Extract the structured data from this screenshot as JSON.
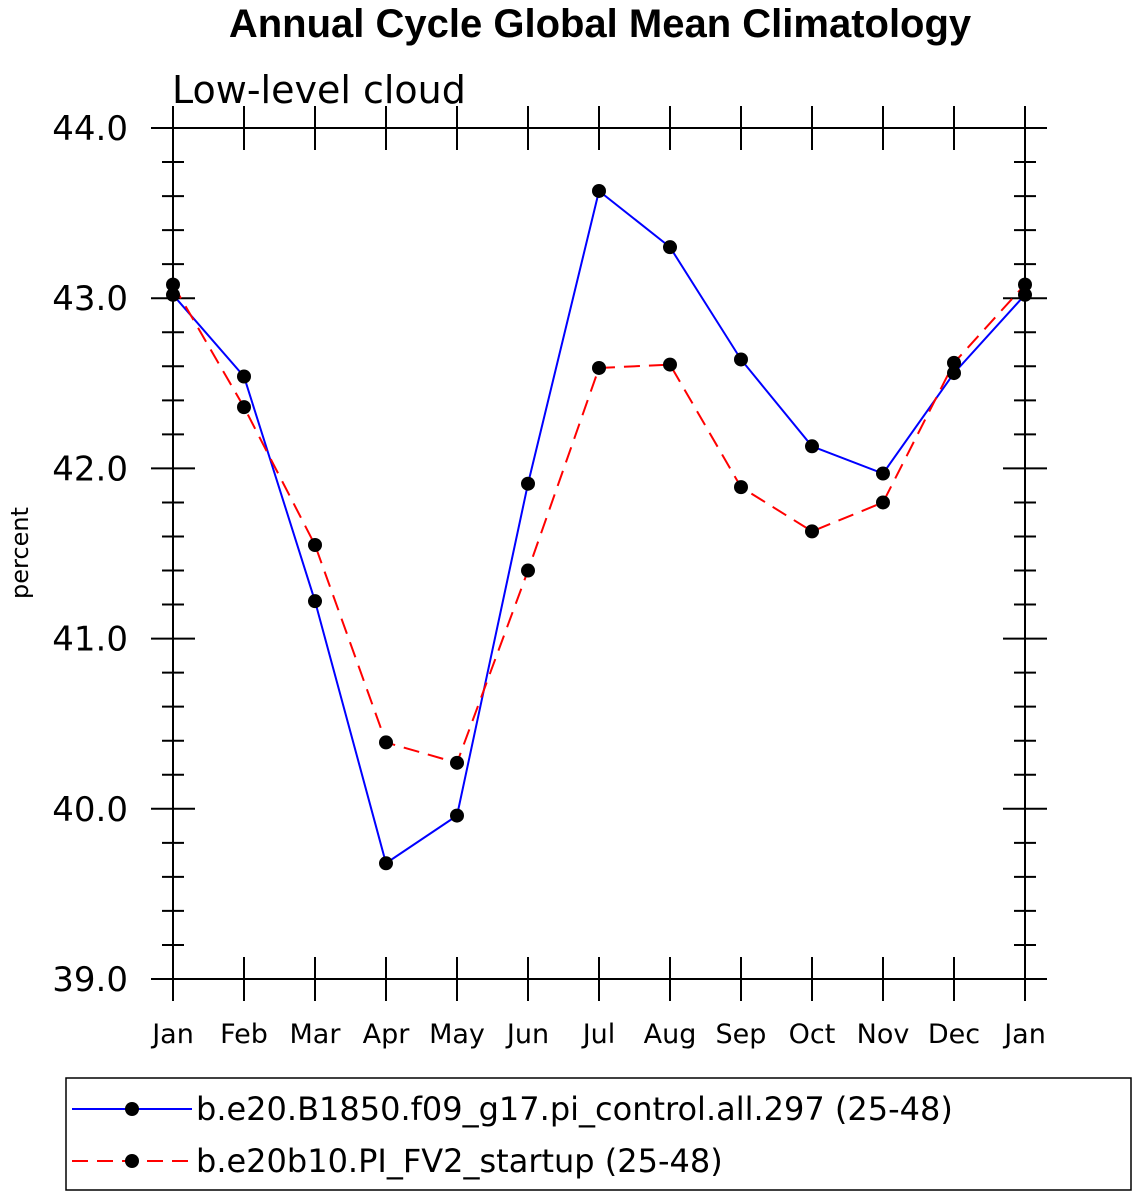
{
  "chart_data": {
    "type": "line",
    "title": "Annual Cycle Global Mean Climatology",
    "subtitle": "Low-level cloud",
    "xlabel": "",
    "ylabel": "percent",
    "ylim": [
      39.0,
      44.0
    ],
    "yticks": [
      "39.0",
      "40.0",
      "41.0",
      "42.0",
      "43.0",
      "44.0"
    ],
    "categories": [
      "Jan",
      "Feb",
      "Mar",
      "Apr",
      "May",
      "Jun",
      "Jul",
      "Aug",
      "Sep",
      "Oct",
      "Nov",
      "Dec",
      "Jan"
    ],
    "grid": false,
    "legend_position": "bottom",
    "series": [
      {
        "name": "b.e20.B1850.f09_g17.pi_control.all.297 (25-48)",
        "color": "#0000ff",
        "style": "solid",
        "values": [
          43.02,
          42.54,
          41.22,
          39.68,
          39.96,
          41.91,
          43.63,
          43.3,
          42.64,
          42.13,
          41.97,
          42.56,
          43.02
        ]
      },
      {
        "name": "b.e20b10.PI_FV2_startup (25-48)",
        "color": "#ff0000",
        "style": "dashed",
        "values": [
          43.08,
          42.36,
          41.55,
          40.39,
          40.27,
          41.4,
          42.59,
          42.61,
          41.89,
          41.63,
          41.8,
          42.62,
          43.08
        ]
      }
    ]
  }
}
